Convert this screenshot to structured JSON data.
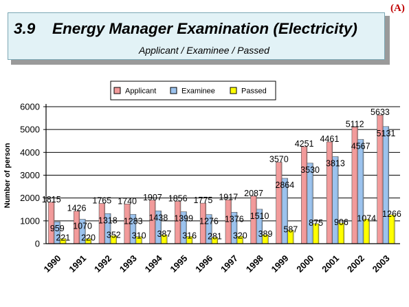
{
  "header": {
    "corner_label": "(A)",
    "section_number": "3.9",
    "title": "Energy Manager Examination (Electricity)",
    "subtitle": "Applicant / Examinee / Passed"
  },
  "chart_data": {
    "type": "bar",
    "categories": [
      "1990",
      "1991",
      "1992",
      "1993",
      "1994",
      "1995",
      "1996",
      "1997",
      "1998",
      "1999",
      "2000",
      "2001",
      "2002",
      "2003"
    ],
    "series": [
      {
        "name": "Applicant",
        "color": "#f29b9b",
        "values": [
          1815,
          1426,
          1765,
          1740,
          1907,
          1856,
          1775,
          1917,
          2087,
          3570,
          4251,
          4461,
          5112,
          5633
        ]
      },
      {
        "name": "Examinee",
        "color": "#9cc3ee",
        "values": [
          959,
          1070,
          1318,
          1283,
          1438,
          1399,
          1276,
          1376,
          1510,
          2864,
          3530,
          3813,
          4567,
          5131
        ]
      },
      {
        "name": "Passed",
        "color": "#ffff00",
        "values": [
          221,
          220,
          352,
          310,
          387,
          316,
          281,
          320,
          389,
          587,
          875,
          906,
          1074,
          1266
        ]
      }
    ],
    "ylabel": "Number of person",
    "xlabel": "",
    "ylim": [
      0,
      6000
    ],
    "yticks": [
      0,
      1000,
      2000,
      3000,
      4000,
      5000,
      6000
    ],
    "legend_position": "top-center",
    "grid": true
  }
}
